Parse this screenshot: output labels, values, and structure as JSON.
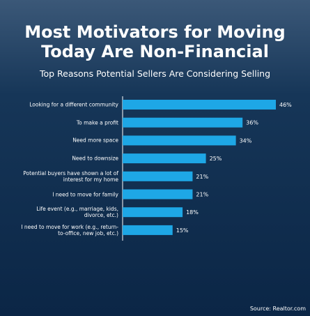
{
  "chart_data": {
    "type": "bar",
    "orientation": "horizontal",
    "title": "Most Motivators for Moving Today Are Non-Financial",
    "subtitle": "Top Reasons Potential Sellers Are Considering Selling",
    "categories": [
      "Looking for a different community",
      "To make a profit",
      "Need more space",
      "Need to downsize",
      "Potential buyers have shown a lot of interest for my home",
      "I need to move for family",
      "Life event (e.g., marriage, kids, divorce, etc.)",
      "I need to move for work (e.g., return-to-office, new job, etc.)"
    ],
    "values": [
      46,
      36,
      34,
      25,
      21,
      21,
      18,
      15
    ],
    "value_labels": [
      "46%",
      "36%",
      "34%",
      "25%",
      "21%",
      "21%",
      "18%",
      "15%"
    ],
    "color": "#1ea7e6",
    "xlim": [
      0,
      46
    ],
    "source": "Source: Realtor.com"
  }
}
